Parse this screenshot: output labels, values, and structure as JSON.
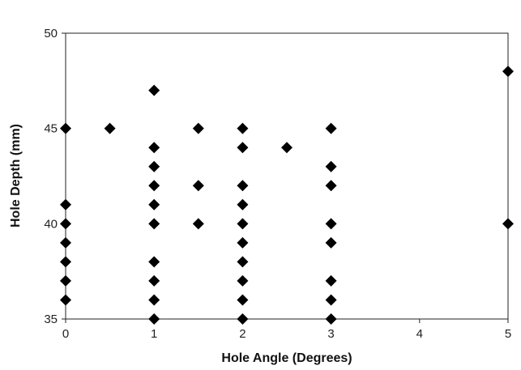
{
  "chart_data": {
    "type": "scatter",
    "title": "",
    "xlabel": "Hole Angle (Degrees)",
    "ylabel": "Hole Depth (mm)",
    "xlim": [
      0,
      5
    ],
    "ylim": [
      35,
      50
    ],
    "xticks": [
      "0",
      "1",
      "2",
      "3",
      "4",
      "5"
    ],
    "yticks": [
      "35",
      "40",
      "45",
      "50"
    ],
    "grid": false,
    "legend": "none",
    "marker": "diamond",
    "marker_color": "#000000",
    "series": [
      {
        "points": [
          {
            "x": 0,
            "y": 45
          },
          {
            "x": 0,
            "y": 41
          },
          {
            "x": 0,
            "y": 40
          },
          {
            "x": 0,
            "y": 39
          },
          {
            "x": 0,
            "y": 38
          },
          {
            "x": 0,
            "y": 37
          },
          {
            "x": 0,
            "y": 36
          },
          {
            "x": 0.5,
            "y": 45
          },
          {
            "x": 1,
            "y": 47
          },
          {
            "x": 1,
            "y": 44
          },
          {
            "x": 1,
            "y": 43
          },
          {
            "x": 1,
            "y": 42
          },
          {
            "x": 1,
            "y": 41
          },
          {
            "x": 1,
            "y": 40
          },
          {
            "x": 1,
            "y": 38
          },
          {
            "x": 1,
            "y": 37
          },
          {
            "x": 1,
            "y": 36
          },
          {
            "x": 1,
            "y": 35
          },
          {
            "x": 1.5,
            "y": 45
          },
          {
            "x": 1.5,
            "y": 42
          },
          {
            "x": 1.5,
            "y": 40
          },
          {
            "x": 2,
            "y": 45
          },
          {
            "x": 2,
            "y": 44
          },
          {
            "x": 2,
            "y": 42
          },
          {
            "x": 2,
            "y": 41
          },
          {
            "x": 2,
            "y": 40
          },
          {
            "x": 2,
            "y": 39
          },
          {
            "x": 2,
            "y": 38
          },
          {
            "x": 2,
            "y": 37
          },
          {
            "x": 2,
            "y": 36
          },
          {
            "x": 2,
            "y": 35
          },
          {
            "x": 2.5,
            "y": 44
          },
          {
            "x": 3,
            "y": 45
          },
          {
            "x": 3,
            "y": 43
          },
          {
            "x": 3,
            "y": 42
          },
          {
            "x": 3,
            "y": 40
          },
          {
            "x": 3,
            "y": 39
          },
          {
            "x": 3,
            "y": 37
          },
          {
            "x": 3,
            "y": 36
          },
          {
            "x": 3,
            "y": 35
          },
          {
            "x": 5,
            "y": 48
          },
          {
            "x": 5,
            "y": 40
          }
        ]
      }
    ]
  }
}
